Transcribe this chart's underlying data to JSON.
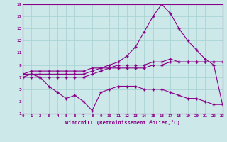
{
  "xlabel": "Windchill (Refroidissement éolien,°C)",
  "ylabel": "",
  "bg_color": "#cce8e8",
  "grid_color": "#aad4d4",
  "line_color": "#880088",
  "x": [
    0,
    1,
    2,
    3,
    4,
    5,
    6,
    7,
    8,
    9,
    10,
    11,
    12,
    13,
    14,
    15,
    16,
    17,
    18,
    19,
    20,
    21,
    22,
    23
  ],
  "line1": [
    7.5,
    8.0,
    8.0,
    8.0,
    8.0,
    8.0,
    8.0,
    8.0,
    8.5,
    8.5,
    8.5,
    9.0,
    9.0,
    9.0,
    9.0,
    9.5,
    9.5,
    10.0,
    9.5,
    9.5,
    9.5,
    9.5,
    9.5,
    9.5
  ],
  "line2": [
    7.5,
    7.5,
    7.5,
    7.5,
    7.5,
    7.5,
    7.5,
    7.5,
    8.0,
    8.5,
    9.0,
    9.5,
    10.5,
    12.0,
    14.5,
    17.0,
    19.0,
    17.5,
    15.0,
    13.0,
    11.5,
    10.0,
    9.0,
    2.5
  ],
  "line3": [
    7.0,
    7.5,
    7.0,
    7.0,
    7.0,
    7.0,
    7.0,
    7.0,
    7.5,
    8.0,
    8.5,
    8.5,
    8.5,
    8.5,
    8.5,
    9.0,
    9.0,
    9.5,
    9.5,
    9.5,
    9.5,
    9.5,
    9.5,
    9.5
  ],
  "line4": [
    7.0,
    7.0,
    7.0,
    5.5,
    4.5,
    3.5,
    4.0,
    3.0,
    1.5,
    4.5,
    5.0,
    5.5,
    5.5,
    5.5,
    5.0,
    5.0,
    5.0,
    4.5,
    4.0,
    3.5,
    3.5,
    3.0,
    2.5,
    2.5
  ],
  "ylim": [
    1,
    19
  ],
  "yticks": [
    1,
    3,
    5,
    7,
    9,
    11,
    13,
    15,
    17,
    19
  ],
  "xlim": [
    0,
    23
  ],
  "xticks": [
    0,
    1,
    2,
    3,
    4,
    5,
    6,
    7,
    8,
    9,
    10,
    11,
    12,
    13,
    14,
    15,
    16,
    17,
    18,
    19,
    20,
    21,
    22,
    23
  ]
}
